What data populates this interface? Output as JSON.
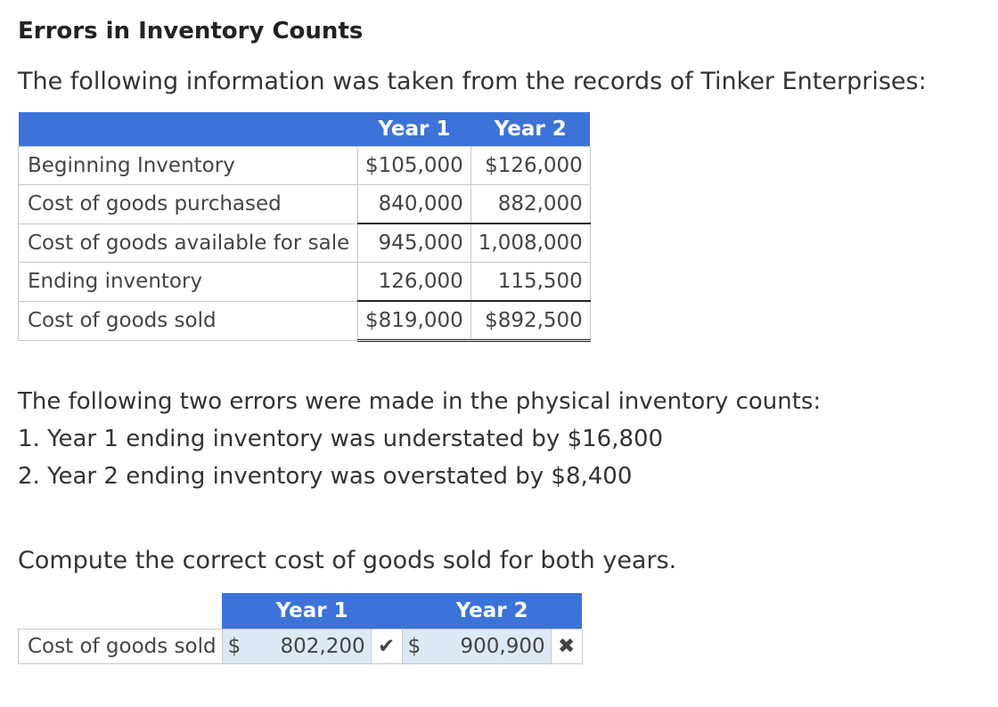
{
  "title": "Errors in Inventory Counts",
  "intro": "The following information was taken from the records of Tinker Enterprises:",
  "data_table": {
    "headers": [
      "Year 1",
      "Year 2"
    ],
    "rows": [
      {
        "label": "Beginning Inventory",
        "y1": "$105,000",
        "y2": "$126,000"
      },
      {
        "label": "Cost of goods purchased",
        "y1": "840,000",
        "y2": "882,000"
      },
      {
        "label": "Cost of goods available for sale",
        "y1": "945,000",
        "y2": "1,008,000"
      },
      {
        "label": "Ending inventory",
        "y1": "126,000",
        "y2": "115,500"
      },
      {
        "label": "Cost of goods sold",
        "y1": "$819,000",
        "y2": "$892,500"
      }
    ]
  },
  "errors": {
    "intro": "The following two errors were made in the physical inventory counts:",
    "items": [
      "1. Year 1 ending inventory was understated by $16,800",
      "2. Year 2 ending inventory was overstated by $8,400"
    ]
  },
  "task": "Compute the correct cost of goods sold for both years.",
  "answer_table": {
    "headers": [
      "Year 1",
      "Year 2"
    ],
    "label": "Cost of goods sold",
    "currency": "$",
    "year1_value": "802,200",
    "year2_value": "900,900",
    "year1_status": "correct",
    "year2_status": "incorrect",
    "check_icon": "✔",
    "cross_icon": "✖"
  },
  "colors": {
    "header_bg": "#3c73d9",
    "input_bg": "#dde9f5",
    "correct": "#3a9b3a",
    "incorrect": "#d23b2f"
  }
}
